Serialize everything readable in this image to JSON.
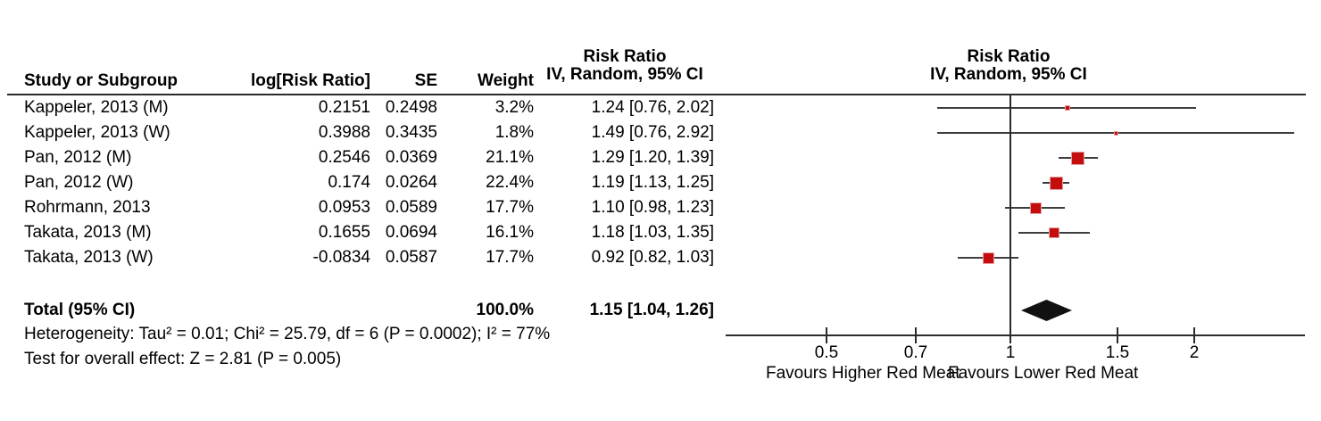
{
  "chart_data": {
    "type": "forest",
    "table_header": {
      "study": "Study or Subgroup",
      "log_rr": "log[Risk Ratio]",
      "se": "SE",
      "weight": "Weight",
      "effect_label": "Risk Ratio",
      "model_label": "IV, Random, 95% CI"
    },
    "plot_header": {
      "effect_label": "Risk Ratio",
      "model_label": "IV, Random, 95% CI"
    },
    "rows": [
      {
        "study": "Kappeler, 2013 (M)",
        "log_rr": "0.2151",
        "se": "0.2498",
        "weight": "3.2%",
        "weight_pct": 3.2,
        "ci_label": "1.24 [0.76, 2.02]",
        "rr": 1.24,
        "lo": 0.76,
        "hi": 2.02
      },
      {
        "study": "Kappeler, 2013 (W)",
        "log_rr": "0.3988",
        "se": "0.3435",
        "weight": "1.8%",
        "weight_pct": 1.8,
        "ci_label": "1.49 [0.76, 2.92]",
        "rr": 1.49,
        "lo": 0.76,
        "hi": 2.92
      },
      {
        "study": "Pan, 2012 (M)",
        "log_rr": "0.2546",
        "se": "0.0369",
        "weight": "21.1%",
        "weight_pct": 21.1,
        "ci_label": "1.29 [1.20, 1.39]",
        "rr": 1.29,
        "lo": 1.2,
        "hi": 1.39
      },
      {
        "study": "Pan, 2012 (W)",
        "log_rr": "0.174",
        "se": "0.0264",
        "weight": "22.4%",
        "weight_pct": 22.4,
        "ci_label": "1.19 [1.13, 1.25]",
        "rr": 1.19,
        "lo": 1.13,
        "hi": 1.25
      },
      {
        "study": "Rohrmann, 2013",
        "log_rr": "0.0953",
        "se": "0.0589",
        "weight": "17.7%",
        "weight_pct": 17.7,
        "ci_label": "1.10 [0.98, 1.23]",
        "rr": 1.1,
        "lo": 0.98,
        "hi": 1.23
      },
      {
        "study": "Takata, 2013 (M)",
        "log_rr": "0.1655",
        "se": "0.0694",
        "weight": "16.1%",
        "weight_pct": 16.1,
        "ci_label": "1.18 [1.03, 1.35]",
        "rr": 1.18,
        "lo": 1.03,
        "hi": 1.35
      },
      {
        "study": "Takata, 2013 (W)",
        "log_rr": "-0.0834",
        "se": "0.0587",
        "weight": "17.7%",
        "weight_pct": 17.7,
        "ci_label": "0.92 [0.82, 1.03]",
        "rr": 0.92,
        "lo": 0.82,
        "hi": 1.03
      }
    ],
    "total": {
      "label": "Total (95% CI)",
      "weight": "100.0%",
      "ci_label": "1.15 [1.04, 1.26]",
      "rr": 1.15,
      "lo": 1.04,
      "hi": 1.26
    },
    "heterogeneity": "Heterogeneity: Tau² = 0.01; Chi² = 25.79, df = 6 (P = 0.0002); I² = 77%",
    "overall_effect": "Test for overall effect: Z = 2.81 (P = 0.005)",
    "axis": {
      "scale": "log",
      "ticks": [
        0.5,
        0.7,
        1,
        1.5,
        2
      ],
      "tick_labels": [
        "0.5",
        "0.7",
        "1",
        "1.5",
        "2"
      ],
      "favours_left": "Favours Higher Red Meat",
      "favours_right": "Favours Lower Red Meat"
    },
    "colors": {
      "marker": "#c40d0d",
      "line": "#3d3d3d",
      "diamond": "#111111"
    }
  }
}
